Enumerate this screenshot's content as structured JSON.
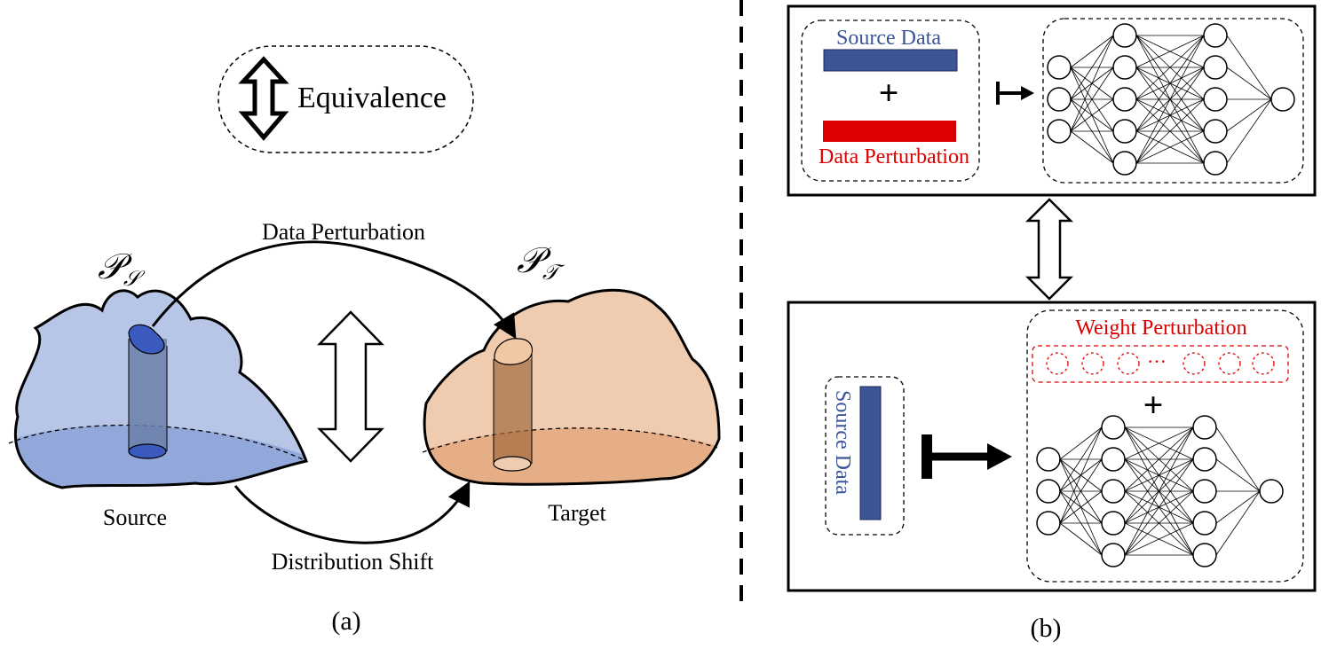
{
  "legend": {
    "label": "Equivalence"
  },
  "panel_a": {
    "top_arrow_label": "Data Perturbation",
    "bottom_arrow_label": "Distribution Shift",
    "source_dist_symbol": "𝒫",
    "source_dist_sub": "𝒮",
    "target_dist_symbol": "𝒫",
    "target_dist_sub": "𝒯",
    "source_label": "Source",
    "target_label": "Target",
    "caption": "(a)"
  },
  "panel_b": {
    "top_box": {
      "source_data_label": "Source Data",
      "plus": "+",
      "perturbation_label": "Data Perturbation"
    },
    "bottom_box": {
      "weight_perturbation_label": "Weight Perturbation",
      "ellipsis": "···",
      "plus": "+",
      "source_data_label": "Source Data"
    },
    "caption": "(b)"
  },
  "colors": {
    "source_fill": "#b7c5e6",
    "source_fill_dark": "#93a8da",
    "source_blue": "#3b5597",
    "target_fill": "#efccb0",
    "target_fill_dark": "#e6ae86",
    "perturb_red": "#dd0000"
  }
}
